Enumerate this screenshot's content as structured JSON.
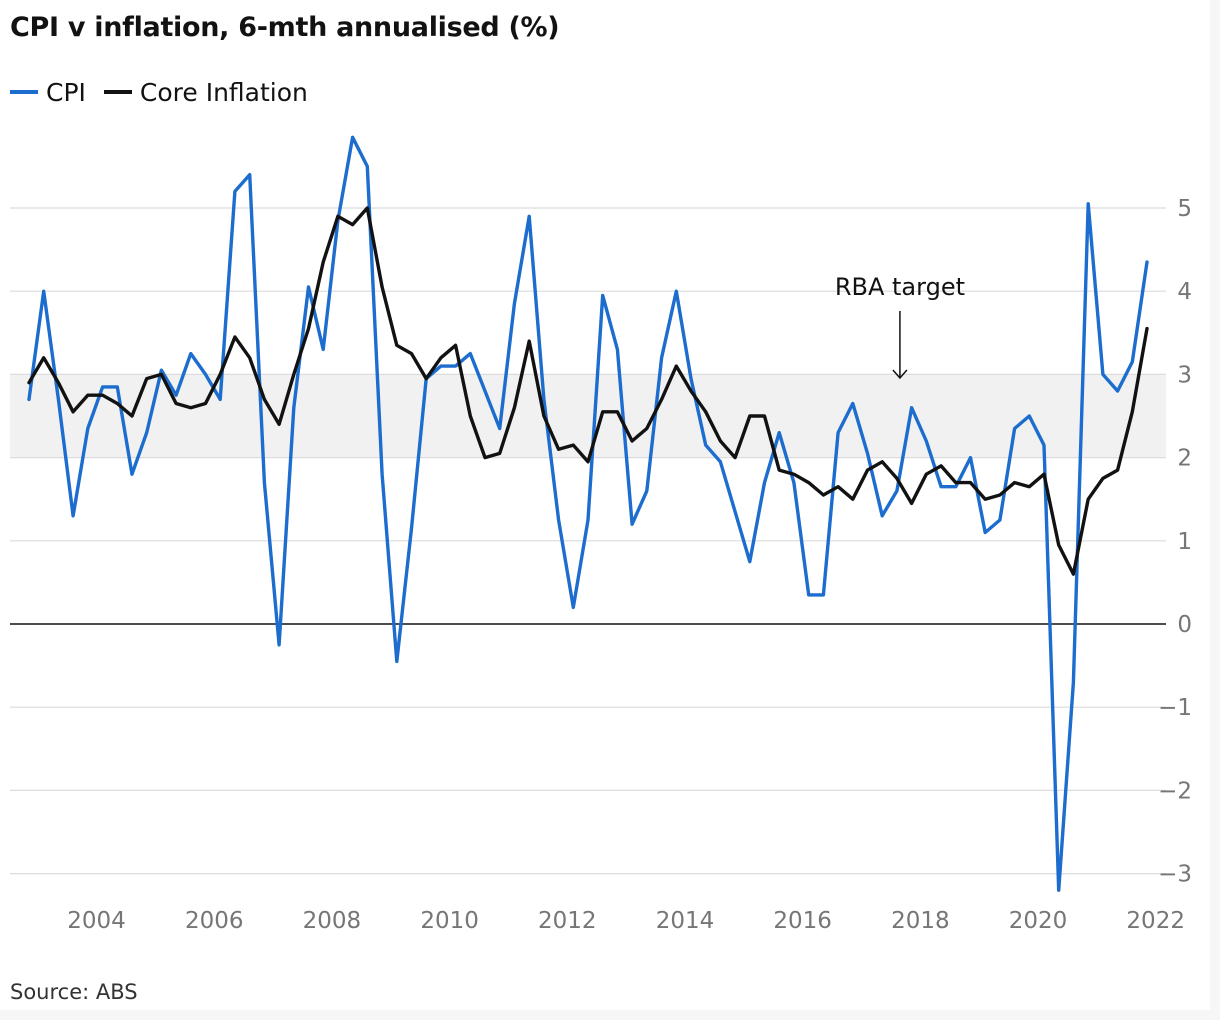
{
  "title": "CPI v inflation, 6-mth annualised (%)",
  "source": "Source: ABS",
  "colors": {
    "cpi": "#1c6dce",
    "core": "#121212",
    "target_band": "#f1f1f1",
    "grid": "#dcdcdc",
    "zero": "#121212"
  },
  "chart_data": {
    "type": "line",
    "title": "CPI v inflation, 6-mth annualised (%)",
    "xlabel": "",
    "ylabel": "",
    "xlim": [
      2002.6,
      2022.3
    ],
    "ylim": [
      -3.4,
      6.0
    ],
    "x_ticks": [
      2004,
      2006,
      2008,
      2010,
      2012,
      2014,
      2016,
      2018,
      2020,
      2022
    ],
    "y_ticks": [
      -3,
      -2,
      -1,
      0,
      1,
      2,
      3,
      4,
      5
    ],
    "target_band": [
      2,
      3
    ],
    "annotation": {
      "text": "RBA target",
      "x": 2017.5
    },
    "legend_position": "top-left",
    "grid": true,
    "x": [
      2002.75,
      2003.0,
      2003.25,
      2003.5,
      2003.75,
      2004.0,
      2004.25,
      2004.5,
      2004.75,
      2005.0,
      2005.25,
      2005.5,
      2005.75,
      2006.0,
      2006.25,
      2006.5,
      2006.75,
      2007.0,
      2007.25,
      2007.5,
      2007.75,
      2008.0,
      2008.25,
      2008.5,
      2008.75,
      2009.0,
      2009.25,
      2009.5,
      2009.75,
      2010.0,
      2010.25,
      2010.5,
      2010.75,
      2011.0,
      2011.25,
      2011.5,
      2011.75,
      2012.0,
      2012.25,
      2012.5,
      2012.75,
      2013.0,
      2013.25,
      2013.5,
      2013.75,
      2014.0,
      2014.25,
      2014.5,
      2014.75,
      2015.0,
      2015.25,
      2015.5,
      2015.75,
      2016.0,
      2016.25,
      2016.5,
      2016.75,
      2017.0,
      2017.25,
      2017.5,
      2017.75,
      2018.0,
      2018.25,
      2018.5,
      2018.75,
      2019.0,
      2019.25,
      2019.5,
      2019.75,
      2020.0,
      2020.25,
      2020.5,
      2020.75,
      2021.0,
      2021.25,
      2021.5,
      2021.75
    ],
    "series": [
      {
        "name": "CPI",
        "color": "#1c6dce",
        "values": [
          2.7,
          4.0,
          2.7,
          1.3,
          2.35,
          2.85,
          2.85,
          1.8,
          2.3,
          3.05,
          2.75,
          3.25,
          3.0,
          2.7,
          5.2,
          5.4,
          1.7,
          -0.25,
          2.6,
          4.05,
          3.3,
          4.85,
          5.85,
          5.5,
          1.8,
          -0.45,
          1.15,
          2.95,
          3.1,
          3.1,
          3.25,
          2.8,
          2.35,
          3.85,
          4.9,
          2.7,
          1.25,
          0.2,
          1.25,
          3.95,
          3.3,
          1.2,
          1.6,
          3.2,
          4.0,
          2.95,
          2.15,
          1.95,
          1.35,
          0.75,
          1.7,
          2.3,
          1.7,
          0.35,
          0.35,
          2.3,
          2.65,
          2.05,
          1.3,
          1.6,
          2.6,
          2.2,
          1.65,
          1.65,
          2.0,
          1.1,
          1.25,
          2.35,
          2.5,
          2.15,
          -3.2,
          -0.7,
          5.05,
          3.0,
          2.8,
          3.15,
          4.35
        ]
      },
      {
        "name": "Core Inflation",
        "color": "#121212",
        "values": [
          2.9,
          3.2,
          2.9,
          2.55,
          2.75,
          2.75,
          2.65,
          2.5,
          2.95,
          3.0,
          2.65,
          2.6,
          2.65,
          3.0,
          3.45,
          3.2,
          2.7,
          2.4,
          3.0,
          3.55,
          4.35,
          4.9,
          4.8,
          5.0,
          4.05,
          3.35,
          3.25,
          2.95,
          3.2,
          3.35,
          2.5,
          2.0,
          2.05,
          2.6,
          3.4,
          2.5,
          2.1,
          2.15,
          1.95,
          2.55,
          2.55,
          2.2,
          2.35,
          2.7,
          3.1,
          2.8,
          2.55,
          2.2,
          2.0,
          2.5,
          2.5,
          1.85,
          1.8,
          1.7,
          1.55,
          1.65,
          1.5,
          1.85,
          1.95,
          1.75,
          1.45,
          1.8,
          1.9,
          1.7,
          1.7,
          1.5,
          1.55,
          1.7,
          1.65,
          1.8,
          0.95,
          0.6,
          1.5,
          1.75,
          1.85,
          2.55,
          3.55
        ]
      }
    ]
  }
}
